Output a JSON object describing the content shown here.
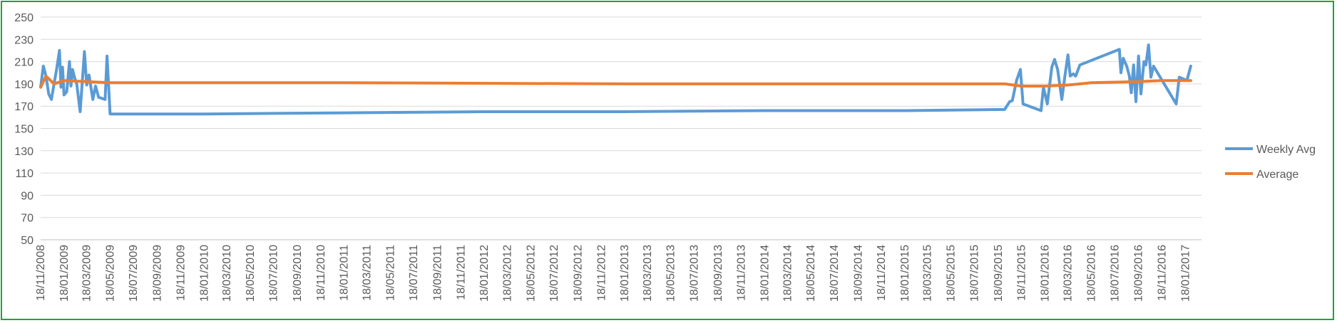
{
  "chart_data": {
    "type": "line",
    "title": "",
    "xlabel": "",
    "ylabel": "",
    "ylim": [
      50,
      250
    ],
    "yticks": [
      50,
      70,
      90,
      110,
      130,
      150,
      170,
      190,
      210,
      230,
      250
    ],
    "xlim": [
      "2008-11-18",
      "2017-03-01"
    ],
    "xtick_labels": [
      "18/11/2008",
      "18/01/2009",
      "18/03/2009",
      "18/05/2009",
      "18/07/2009",
      "18/09/2009",
      "18/11/2009",
      "18/01/2010",
      "18/03/2010",
      "18/05/2010",
      "18/07/2010",
      "18/09/2010",
      "18/11/2010",
      "18/01/2011",
      "18/03/2011",
      "18/05/2011",
      "18/07/2011",
      "18/09/2011",
      "18/11/2011",
      "18/01/2012",
      "18/03/2012",
      "18/05/2012",
      "18/07/2012",
      "18/09/2012",
      "18/11/2012",
      "18/01/2013",
      "18/03/2013",
      "18/05/2013",
      "18/07/2013",
      "18/09/2013",
      "18/11/2013",
      "18/01/2014",
      "18/03/2014",
      "18/05/2014",
      "18/07/2014",
      "18/09/2014",
      "18/11/2014",
      "18/01/2015",
      "18/03/2015",
      "18/05/2015",
      "18/07/2015",
      "18/09/2015",
      "18/11/2015",
      "18/01/2016",
      "18/03/2016",
      "18/05/2016",
      "18/07/2016",
      "18/09/2016",
      "18/11/2016",
      "18/01/2017"
    ],
    "grid": true,
    "legend_position": "right",
    "series": [
      {
        "name": "Weekly Avg",
        "color": "#5b9bd5",
        "points": [
          [
            "2008-11-18",
            187
          ],
          [
            "2008-11-25",
            206
          ],
          [
            "2008-12-02",
            197
          ],
          [
            "2008-12-09",
            181
          ],
          [
            "2008-12-16",
            176
          ],
          [
            "2008-12-23",
            190
          ],
          [
            "2008-12-30",
            204
          ],
          [
            "2009-01-06",
            220
          ],
          [
            "2009-01-10",
            187
          ],
          [
            "2009-01-14",
            205
          ],
          [
            "2009-01-18",
            180
          ],
          [
            "2009-01-25",
            183
          ],
          [
            "2009-02-01",
            210
          ],
          [
            "2009-02-05",
            188
          ],
          [
            "2009-02-09",
            203
          ],
          [
            "2009-02-14",
            196
          ],
          [
            "2009-02-20",
            190
          ],
          [
            "2009-03-01",
            165
          ],
          [
            "2009-03-12",
            219
          ],
          [
            "2009-03-18",
            189
          ],
          [
            "2009-03-24",
            198
          ],
          [
            "2009-04-03",
            176
          ],
          [
            "2009-04-10",
            188
          ],
          [
            "2009-04-18",
            178
          ],
          [
            "2009-05-05",
            176
          ],
          [
            "2009-05-10",
            215
          ],
          [
            "2009-05-18",
            163
          ],
          [
            "2010-01-18",
            163
          ],
          [
            "2011-01-18",
            164
          ],
          [
            "2012-01-18",
            165
          ],
          [
            "2013-01-18",
            165
          ],
          [
            "2014-01-18",
            166
          ],
          [
            "2015-01-18",
            166
          ],
          [
            "2015-10-05",
            167
          ],
          [
            "2015-10-18",
            174
          ],
          [
            "2015-10-25",
            175
          ],
          [
            "2015-11-05",
            193
          ],
          [
            "2015-11-15",
            203
          ],
          [
            "2015-11-22",
            172
          ],
          [
            "2016-01-08",
            166
          ],
          [
            "2016-01-14",
            187
          ],
          [
            "2016-01-24",
            172
          ],
          [
            "2016-02-05",
            205
          ],
          [
            "2016-02-12",
            212
          ],
          [
            "2016-02-20",
            203
          ],
          [
            "2016-03-02",
            176
          ],
          [
            "2016-03-10",
            197
          ],
          [
            "2016-03-18",
            216
          ],
          [
            "2016-03-24",
            197
          ],
          [
            "2016-04-01",
            199
          ],
          [
            "2016-04-07",
            197
          ],
          [
            "2016-04-18",
            207
          ],
          [
            "2016-07-30",
            221
          ],
          [
            "2016-08-03",
            200
          ],
          [
            "2016-08-09",
            213
          ],
          [
            "2016-08-18",
            206
          ],
          [
            "2016-08-25",
            197
          ],
          [
            "2016-08-30",
            182
          ],
          [
            "2016-09-05",
            207
          ],
          [
            "2016-09-11",
            174
          ],
          [
            "2016-09-18",
            215
          ],
          [
            "2016-09-24",
            181
          ],
          [
            "2016-10-02",
            210
          ],
          [
            "2016-10-07",
            207
          ],
          [
            "2016-10-14",
            225
          ],
          [
            "2016-10-20",
            196
          ],
          [
            "2016-10-27",
            206
          ],
          [
            "2016-12-25",
            172
          ],
          [
            "2017-01-02",
            196
          ],
          [
            "2017-01-22",
            193
          ],
          [
            "2017-02-01",
            206
          ]
        ]
      },
      {
        "name": "Average",
        "color": "#ed7d31",
        "points": [
          [
            "2008-11-18",
            187
          ],
          [
            "2008-12-02",
            197
          ],
          [
            "2008-12-23",
            190
          ],
          [
            "2009-01-18",
            193
          ],
          [
            "2009-03-18",
            192
          ],
          [
            "2009-05-18",
            191
          ],
          [
            "2011-01-18",
            191
          ],
          [
            "2013-01-18",
            190
          ],
          [
            "2015-10-05",
            190
          ],
          [
            "2015-11-18",
            188
          ],
          [
            "2016-01-18",
            188
          ],
          [
            "2016-03-18",
            189
          ],
          [
            "2016-05-18",
            191
          ],
          [
            "2016-09-18",
            192
          ],
          [
            "2016-11-18",
            193
          ],
          [
            "2017-02-01",
            193
          ]
        ]
      }
    ]
  }
}
